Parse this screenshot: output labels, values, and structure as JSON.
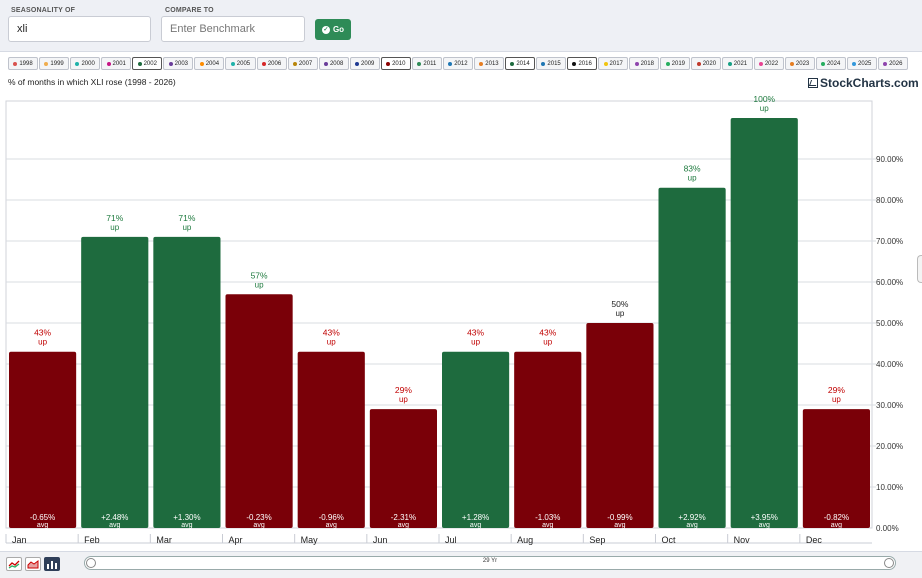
{
  "header": {
    "seasonality_label": "SEASONALITY OF",
    "symbol_value": "xli",
    "compare_label": "COMPARE TO",
    "benchmark_placeholder": "Enter Benchmark",
    "go_label": "Go"
  },
  "years": [
    {
      "label": "1998",
      "color": "#d9534f",
      "selected": false
    },
    {
      "label": "1999",
      "color": "#f0ad4e",
      "selected": false
    },
    {
      "label": "2000",
      "color": "#20b2aa",
      "selected": false
    },
    {
      "label": "2001",
      "color": "#c71585",
      "selected": false
    },
    {
      "label": "2002",
      "color": "#1e6b3e",
      "selected": true
    },
    {
      "label": "2003",
      "color": "#6a3d9a",
      "selected": false
    },
    {
      "label": "2004",
      "color": "#ff8c00",
      "selected": false
    },
    {
      "label": "2005",
      "color": "#20b2aa",
      "selected": false
    },
    {
      "label": "2006",
      "color": "#d62728",
      "selected": false
    },
    {
      "label": "2007",
      "color": "#b8860b",
      "selected": false
    },
    {
      "label": "2008",
      "color": "#6a3d9a",
      "selected": false
    },
    {
      "label": "2009",
      "color": "#1f3a93",
      "selected": false
    },
    {
      "label": "2010",
      "color": "#8b0000",
      "selected": true
    },
    {
      "label": "2011",
      "color": "#2e8b57",
      "selected": false
    },
    {
      "label": "2012",
      "color": "#1f77b4",
      "selected": false
    },
    {
      "label": "2013",
      "color": "#e67e22",
      "selected": false
    },
    {
      "label": "2014",
      "color": "#1e6b3e",
      "selected": true
    },
    {
      "label": "2015",
      "color": "#1f77b4",
      "selected": false
    },
    {
      "label": "2016",
      "color": "#111111",
      "selected": true
    },
    {
      "label": "2017",
      "color": "#f1c40f",
      "selected": false
    },
    {
      "label": "2018",
      "color": "#8e44ad",
      "selected": false
    },
    {
      "label": "2019",
      "color": "#27ae60",
      "selected": false
    },
    {
      "label": "2020",
      "color": "#c0392b",
      "selected": false
    },
    {
      "label": "2021",
      "color": "#16a085",
      "selected": false
    },
    {
      "label": "2022",
      "color": "#e84393",
      "selected": false
    },
    {
      "label": "2023",
      "color": "#e67e22",
      "selected": false
    },
    {
      "label": "2024",
      "color": "#27ae60",
      "selected": false
    },
    {
      "label": "2025",
      "color": "#3498db",
      "selected": false
    },
    {
      "label": "2026",
      "color": "#8e44ad",
      "selected": false
    }
  ],
  "chart": {
    "subtitle": "% of months in which XLI rose (1998 - 2026)",
    "brand": "StockCharts.com",
    "up_word": "up",
    "avg_word": "avg",
    "colors": {
      "up": "#1e6b3e",
      "down": "#7a0008",
      "up_text": "#1e7a3e",
      "down_text": "#c00000",
      "neutral_text": "#222222"
    }
  },
  "chart_data": {
    "type": "bar",
    "categories": [
      "Jan",
      "Feb",
      "Mar",
      "Apr",
      "May",
      "Jun",
      "Jul",
      "Aug",
      "Sep",
      "Oct",
      "Nov",
      "Dec"
    ],
    "values": [
      43,
      71,
      71,
      57,
      43,
      29,
      43,
      43,
      50,
      83,
      100,
      29
    ],
    "value_labels": [
      "43%",
      "71%",
      "71%",
      "57%",
      "43%",
      "29%",
      "43%",
      "43%",
      "50%",
      "83%",
      "100%",
      "29%"
    ],
    "avg_labels": [
      "-0.65%",
      "+2.48%",
      "+1.30%",
      "-0.23%",
      "-0.96%",
      "-2.31%",
      "+1.28%",
      "-1.03%",
      "-0.99%",
      "+2.92%",
      "+3.95%",
      "-0.82%"
    ],
    "avg_direction": [
      "down",
      "up",
      "up",
      "down",
      "down",
      "down",
      "up",
      "down",
      "down",
      "up",
      "up",
      "down"
    ],
    "label_tone": [
      "down",
      "up",
      "up",
      "up",
      "down",
      "down",
      "down",
      "down",
      "neutral",
      "up",
      "up",
      "down"
    ],
    "yticks": [
      "0.00%",
      "10.00%",
      "20.00%",
      "30.00%",
      "40.00%",
      "50.00%",
      "60.00%",
      "70.00%",
      "80.00%",
      "90.00%"
    ],
    "ylim": [
      0,
      100
    ],
    "grid": true
  },
  "footer": {
    "scroll_label": "29 Yr"
  }
}
